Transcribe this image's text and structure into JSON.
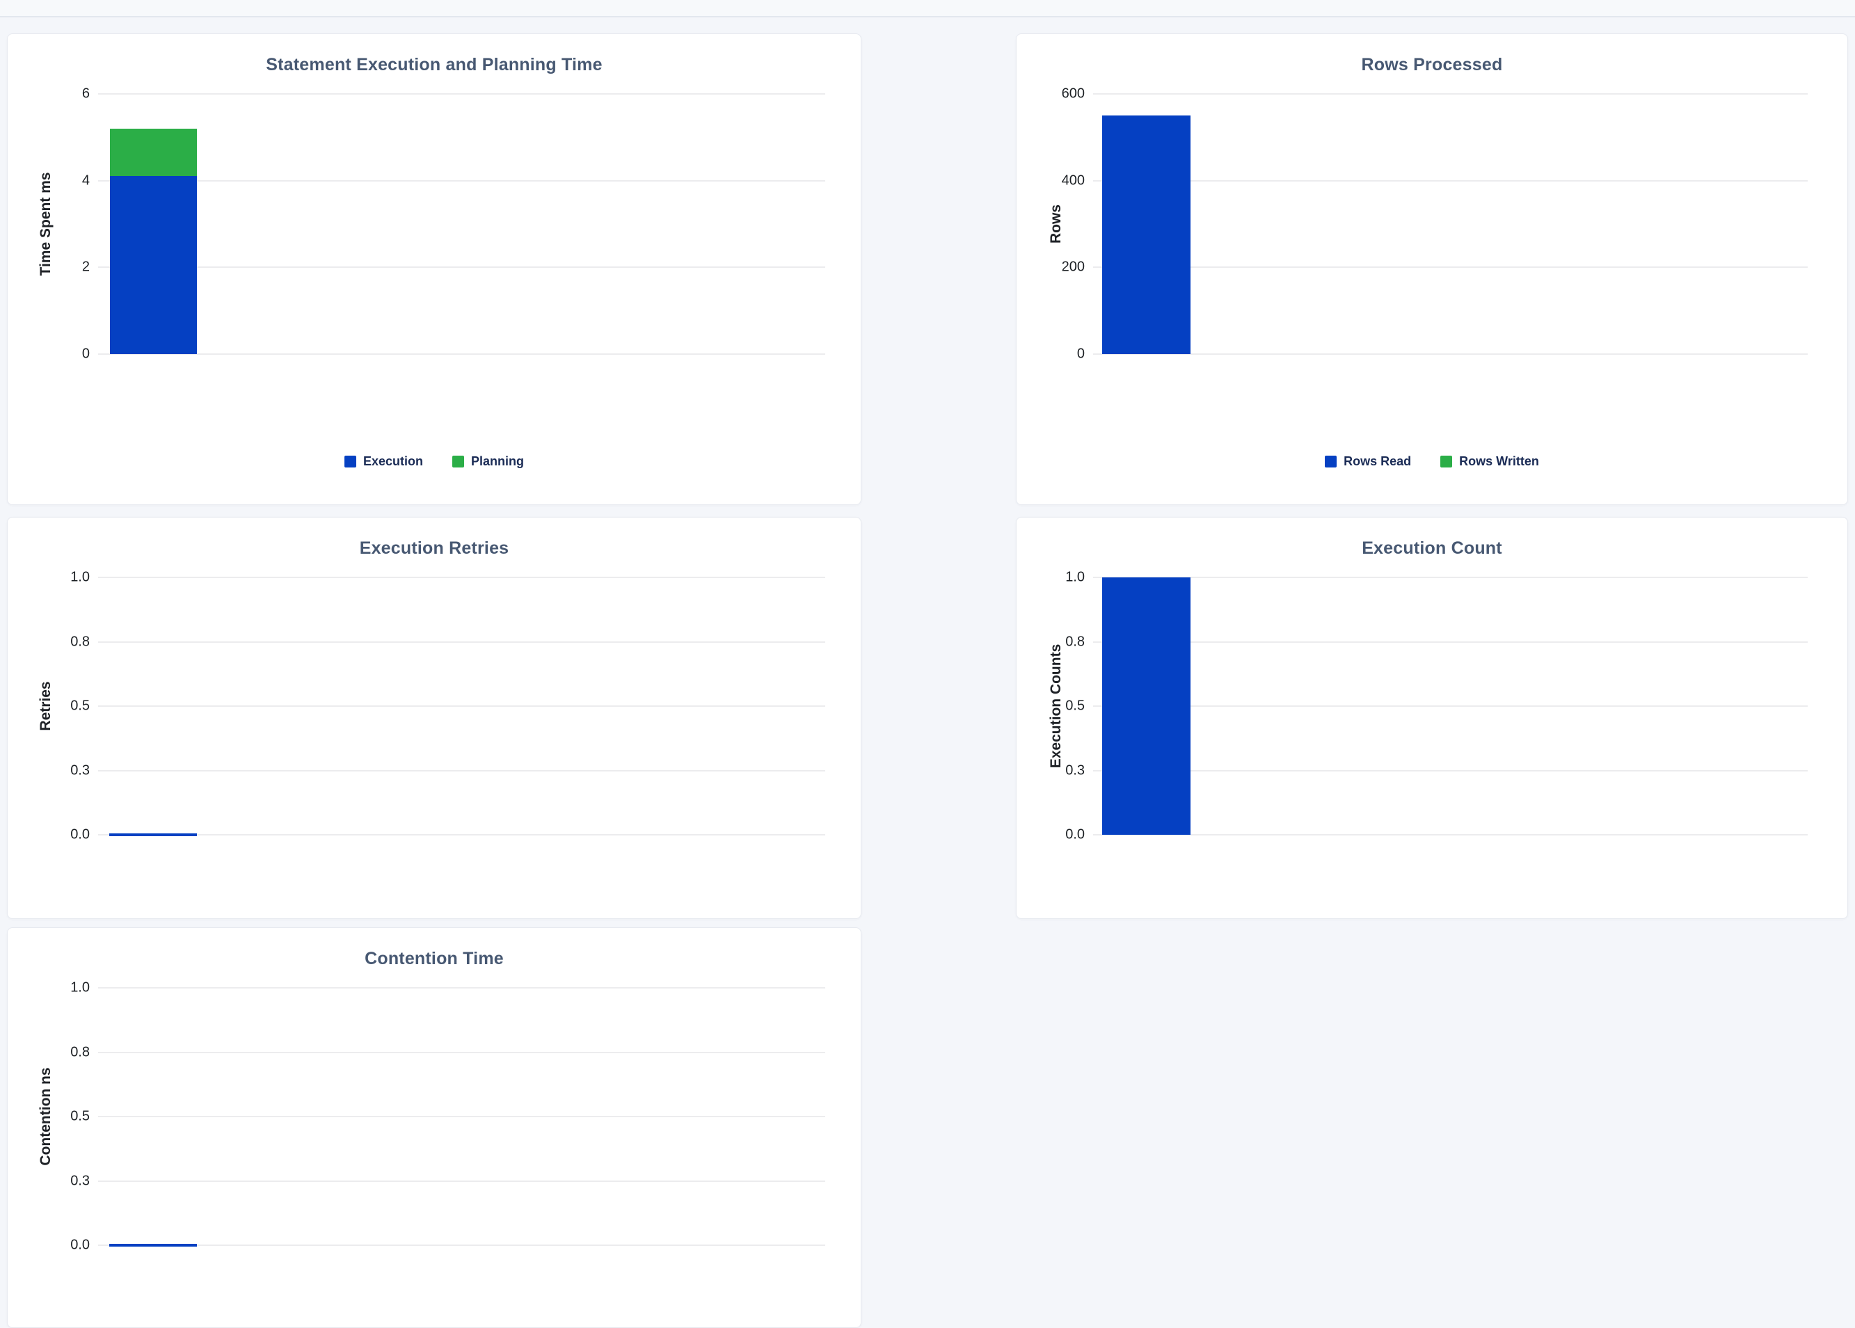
{
  "page": {
    "background": "#f4f6fa",
    "card_background": "#ffffff",
    "accent_blue": "#0540c2",
    "accent_green": "#2bae47",
    "title_color": "#475872"
  },
  "chart_data": [
    {
      "type": "bar",
      "stacked": true,
      "title": "Statement Execution and Planning Time",
      "xlabel": "",
      "ylabel": "Time Spent ms",
      "ylim": [
        0,
        6
      ],
      "yticks": [
        "0",
        "2",
        "4",
        "6"
      ],
      "grid": true,
      "legend_position": "bottom",
      "categories": [
        ""
      ],
      "series": [
        {
          "name": "Execution",
          "color": "#0540c2",
          "value": 4.1
        },
        {
          "name": "Planning",
          "color": "#2bae47",
          "value": 1.1
        }
      ],
      "legend": [
        {
          "label": "Execution",
          "color": "#0540c2"
        },
        {
          "label": "Planning",
          "color": "#2bae47"
        }
      ]
    },
    {
      "type": "bar",
      "stacked": true,
      "title": "Rows Processed",
      "xlabel": "",
      "ylabel": "Rows",
      "ylim": [
        0,
        600
      ],
      "yticks": [
        "0",
        "200",
        "400",
        "600"
      ],
      "grid": true,
      "legend_position": "bottom",
      "categories": [
        ""
      ],
      "series": [
        {
          "name": "Rows Read",
          "color": "#0540c2",
          "value": 550
        },
        {
          "name": "Rows Written",
          "color": "#2bae47",
          "value": 0
        }
      ],
      "legend": [
        {
          "label": "Rows Read",
          "color": "#0540c2"
        },
        {
          "label": "Rows Written",
          "color": "#2bae47"
        }
      ]
    },
    {
      "type": "bar",
      "stacked": false,
      "title": "Execution Retries",
      "xlabel": "",
      "ylabel": "Retries",
      "ylim": [
        0,
        1
      ],
      "yticks": [
        "0.0",
        "0.3",
        "0.5",
        "0.8",
        "1.0"
      ],
      "grid": true,
      "legend_position": "none",
      "categories": [
        ""
      ],
      "series": [
        {
          "name": "Retries",
          "color": "#0540c2",
          "value": 0
        }
      ],
      "legend": []
    },
    {
      "type": "bar",
      "stacked": false,
      "title": "Execution Count",
      "xlabel": "",
      "ylabel": "Execution Counts",
      "ylim": [
        0,
        1
      ],
      "yticks": [
        "0.0",
        "0.3",
        "0.5",
        "0.8",
        "1.0"
      ],
      "grid": true,
      "legend_position": "none",
      "categories": [
        ""
      ],
      "series": [
        {
          "name": "Execution Count",
          "color": "#0540c2",
          "value": 1
        }
      ],
      "legend": []
    },
    {
      "type": "bar",
      "stacked": false,
      "title": "Contention Time",
      "xlabel": "",
      "ylabel": "Contention ns",
      "ylim": [
        0,
        1
      ],
      "yticks": [
        "0.0",
        "0.3",
        "0.5",
        "0.8",
        "1.0"
      ],
      "grid": true,
      "legend_position": "none",
      "categories": [
        ""
      ],
      "series": [
        {
          "name": "Contention",
          "color": "#0540c2",
          "value": 0
        }
      ],
      "legend": []
    }
  ]
}
